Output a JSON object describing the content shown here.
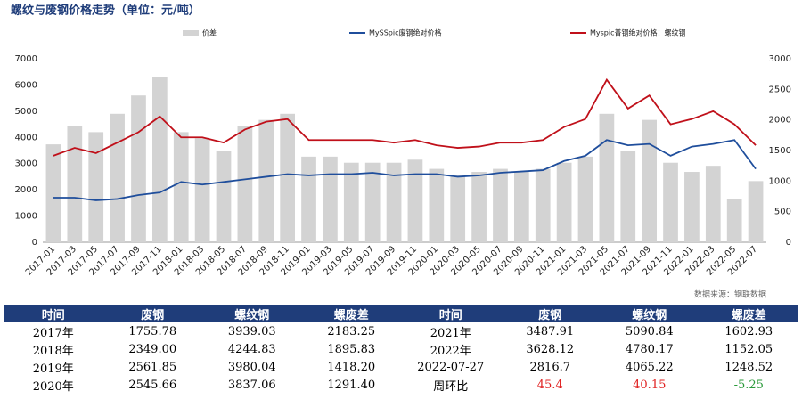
{
  "chart_data": {
    "type": "combo",
    "title": "螺纹与废钢价格走势（单位：元/吨）",
    "source": "数据来源：钢联数据",
    "categories": [
      "2017-01",
      "2017-03",
      "2017-05",
      "2017-07",
      "2017-09",
      "2017-11",
      "2018-01",
      "2018-03",
      "2018-05",
      "2018-07",
      "2018-09",
      "2018-11",
      "2019-01",
      "2019-03",
      "2019-05",
      "2019-07",
      "2019-09",
      "2019-11",
      "2020-01",
      "2020-03",
      "2020-05",
      "2020-07",
      "2020-09",
      "2020-11",
      "2021-01",
      "2021-03",
      "2021-05",
      "2021-07",
      "2021-09",
      "2021-11",
      "2022-01",
      "2022-03",
      "2022-05",
      "2022-07"
    ],
    "series": [
      {
        "name": "价差",
        "type": "bar",
        "axis": "y2",
        "color": "#d3d3d3",
        "values": [
          1600,
          1900,
          1800,
          2100,
          2400,
          2700,
          1800,
          1700,
          1500,
          1900,
          2000,
          2100,
          1400,
          1400,
          1300,
          1300,
          1300,
          1350,
          1200,
          1100,
          1150,
          1200,
          1150,
          1200,
          1300,
          1400,
          2100,
          1500,
          2000,
          1300,
          1150,
          1250,
          700,
          1000
        ]
      },
      {
        "name": "MySSpic废钢绝对价格",
        "type": "line",
        "color": "#1f4e9c",
        "values": [
          1700,
          1700,
          1600,
          1650,
          1800,
          1900,
          2300,
          2200,
          2300,
          2400,
          2500,
          2600,
          2550,
          2600,
          2600,
          2650,
          2550,
          2600,
          2600,
          2500,
          2550,
          2650,
          2700,
          2750,
          3100,
          3300,
          3900,
          3700,
          3750,
          3300,
          3650,
          3750,
          3900,
          2800
        ]
      },
      {
        "name": "Myspic普钢绝对价格：螺纹钢",
        "type": "line",
        "color": "#c0101a",
        "values": [
          3300,
          3600,
          3400,
          3800,
          4200,
          4800,
          4000,
          4000,
          3800,
          4300,
          4600,
          4700,
          3900,
          3900,
          3900,
          3900,
          3800,
          3900,
          3700,
          3600,
          3650,
          3800,
          3800,
          3900,
          4400,
          4700,
          6200,
          5100,
          5600,
          4500,
          4700,
          5000,
          4500,
          3700
        ]
      }
    ],
    "ylim": [
      0,
      7000
    ],
    "yticks": [
      0,
      1000,
      2000,
      3000,
      4000,
      5000,
      6000,
      7000
    ],
    "y2lim": [
      0,
      3000
    ],
    "y2ticks": [
      0,
      500,
      1000,
      1500,
      2000,
      2500,
      3000
    ]
  },
  "table": {
    "header": [
      "时间",
      "废钢",
      "螺纹钢",
      "螺废差",
      "时间",
      "废钢",
      "螺纹钢",
      "螺废差"
    ],
    "rows": [
      [
        "2017年",
        "1755.78",
        "3939.03",
        "2183.25",
        "2021年",
        "3487.91",
        "5090.84",
        "1602.93"
      ],
      [
        "2018年",
        "2349.00",
        "4244.83",
        "1895.83",
        "2022年",
        "3628.12",
        "4780.17",
        "1152.05"
      ],
      [
        "2019年",
        "2561.85",
        "3980.04",
        "1418.20",
        "2022-07-27",
        "2816.7",
        "4065.22",
        "1248.52"
      ],
      [
        "2020年",
        "2545.66",
        "3837.06",
        "1291.40",
        "周环比",
        "45.4",
        "40.15",
        "-5.25"
      ]
    ]
  }
}
